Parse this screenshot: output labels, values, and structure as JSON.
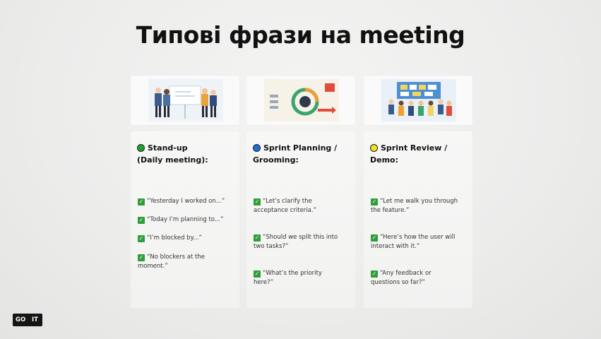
{
  "slide": {
    "title": "Типові фрази на meeting",
    "columns": [
      {
        "dot_color": "#1aa62a",
        "heading_line1": "Stand-up",
        "heading_line2": "(Daily meeting):",
        "items": [
          {
            "line1": "“Yesterday I worked on...”",
            "line2": ""
          },
          {
            "line1": "“Today I’m planning to...”",
            "line2": ""
          },
          {
            "line1": "“I’m blocked by...”",
            "line2": ""
          },
          {
            "line1": "“No blockers at the",
            "line2": "moment.”"
          }
        ]
      },
      {
        "dot_color": "#1c6fd6",
        "heading_line1": "Sprint Planning /",
        "heading_line2": "Grooming:",
        "items": [
          {
            "line1": "“Let’s clarify the",
            "line2": "acceptance criteria.”"
          },
          {
            "line1": "“Should we split this into",
            "line2": "two tasks?”"
          },
          {
            "line1": "“What’s the priority",
            "line2": "here?”"
          }
        ]
      },
      {
        "dot_color": "#f1e21a",
        "heading_line1": "Sprint Review /",
        "heading_line2": "Demo:",
        "items": [
          {
            "line1": "“Let me walk you through",
            "line2": "the feature.”"
          },
          {
            "line1": "“Here’s how the user will",
            "line2": "interact with it.”"
          },
          {
            "line1": "“Any feedback or",
            "line2": "questions so far?”"
          }
        ]
      }
    ],
    "logo_left": "GO",
    "logo_right": "IT",
    "check_glyph": "✓"
  }
}
